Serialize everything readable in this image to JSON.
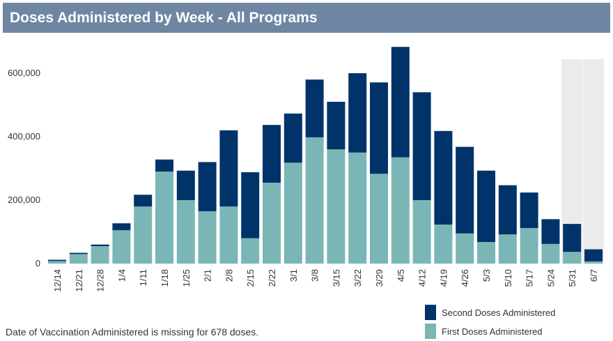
{
  "header": {
    "title": "Doses Administered by Week - All Programs"
  },
  "footnote": "Date of Vaccination Administered is missing for 678 doses.",
  "colors": {
    "second": "#00336a",
    "first": "#7ab6b6",
    "highlight": "#ebebeb"
  },
  "chart_data": {
    "type": "bar",
    "stacked": true,
    "title": "Doses Administered by Week - All Programs",
    "xlabel": "",
    "ylabel": "",
    "ylim": [
      0,
      700000
    ],
    "yticks": [
      0,
      200000,
      400000,
      600000
    ],
    "ytick_labels": [
      "0",
      "200,000",
      "400,000",
      "600,000"
    ],
    "categories": [
      "12/14",
      "12/21",
      "12/28",
      "1/4",
      "1/11",
      "1/18",
      "1/25",
      "2/1",
      "2/8",
      "2/15",
      "2/22",
      "3/1",
      "3/8",
      "3/15",
      "3/22",
      "3/29",
      "4/5",
      "4/12",
      "4/19",
      "4/26",
      "5/3",
      "5/10",
      "5/17",
      "5/24",
      "5/31",
      "6/7"
    ],
    "highlighted_categories": [
      "5/31",
      "6/7"
    ],
    "legend_position": "bottom-right",
    "series": [
      {
        "name": "First Doses Administered",
        "values": [
          8000,
          30000,
          55000,
          105000,
          180000,
          290000,
          200000,
          165000,
          180000,
          80000,
          255000,
          318000,
          398000,
          360000,
          350000,
          283000,
          335000,
          200000,
          123000,
          95000,
          68000,
          92000,
          112000,
          62000,
          37000,
          7000
        ]
      },
      {
        "name": "Second Doses Administered",
        "values": [
          4000,
          4000,
          5000,
          22000,
          37000,
          38000,
          93000,
          155000,
          240000,
          208000,
          182000,
          155000,
          182000,
          150000,
          250000,
          288000,
          348000,
          340000,
          295000,
          273000,
          225000,
          155000,
          112000,
          78000,
          88000,
          38000
        ]
      }
    ]
  },
  "legend": {
    "second_label": "Second Doses Administered",
    "first_label": "First Doses Administered"
  }
}
